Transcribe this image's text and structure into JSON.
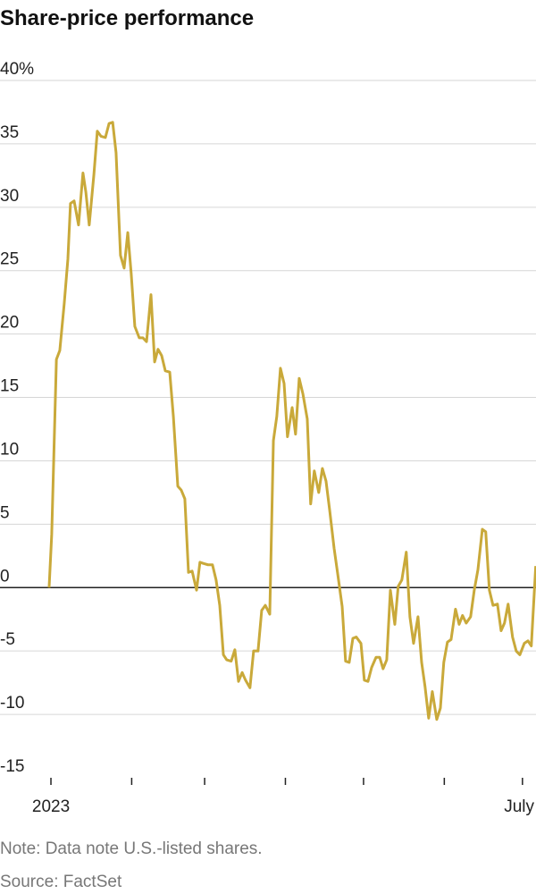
{
  "chart_data": {
    "type": "line",
    "title": "Share-price performance",
    "note": "Note: Data note U.S.-listed shares.",
    "source": "Source: FactSet",
    "color": "#c9a93a",
    "x": [
      -0.7,
      0.3,
      2.1,
      3.4,
      5.1,
      6.5,
      7.5,
      8.9,
      10.6,
      12.3,
      13.4,
      14.7,
      16.5,
      17.8,
      19.2,
      20.9,
      22.3,
      23.7,
      25.0,
      26.7,
      28.1,
      29.5,
      30.8,
      32.2,
      33.9,
      35.3,
      36.7,
      38.4,
      39.8,
      41.1,
      42.5,
      43.9,
      45.6,
      47.0,
      48.7,
      50.0,
      51.4,
      52.8,
      54.2,
      55.9,
      57.2,
      58.6,
      60.3,
      62.0,
      63.4,
      64.8,
      66.2,
      67.5,
      69.2,
      70.6,
      72.0,
      73.4,
      74.7,
      76.4,
      77.8,
      79.5,
      80.9,
      82.3,
      84.0,
      85.4,
      86.7,
      88.1,
      89.5,
      90.8,
      92.6,
      93.9,
      95.3,
      96.7,
      98.4,
      99.7,
      101.1,
      102.8,
      104.2,
      105.6,
      107.0,
      108.7,
      110.0,
      111.8,
      113.1,
      114.5,
      115.9,
      117.2,
      119.0,
      120.3,
      121.7,
      123.1,
      124.8,
      126.2,
      127.5,
      128.9,
      130.3,
      132.0,
      133.3,
      134.7,
      136.4,
      137.8,
      139.2,
      140.9,
      142.3,
      143.6,
      145.0,
      146.4,
      148.1,
      149.5,
      150.8,
      152.2,
      153.6,
      155.3,
      156.7,
      158.0,
      159.4,
      161.1,
      162.5,
      163.9,
      165.6,
      166.9,
      168.3,
      169.7,
      171.4,
      172.8,
      174.1,
      175.5,
      177.2,
      178.6,
      180.0,
      181.7,
      183.1,
      184.4,
      186.1
    ],
    "values": [
      0,
      4.2,
      18,
      18.7,
      22.4,
      25.9,
      30.3,
      30.5,
      28.6,
      32.7,
      31.2,
      28.6,
      32.6,
      36,
      35.6,
      35.5,
      36.6,
      36.7,
      34.3,
      26.2,
      25.2,
      28,
      24.8,
      20.6,
      19.7,
      19.7,
      19.4,
      23.1,
      17.8,
      18.8,
      18.3,
      17.1,
      17,
      13.5,
      8,
      7.7,
      7,
      1.2,
      1.3,
      -0.2,
      2,
      1.9,
      1.8,
      1.8,
      0.6,
      -1.4,
      -5.3,
      -5.7,
      -5.8,
      -4.9,
      -7.4,
      -6.7,
      -7.3,
      -7.9,
      -5,
      -5,
      -1.8,
      -1.4,
      -2.1,
      11.6,
      13.5,
      17.3,
      16.1,
      11.9,
      14.2,
      12.1,
      16.5,
      15.3,
      13.3,
      6.6,
      9.2,
      7.5,
      9.4,
      8.4,
      6.1,
      3.1,
      1.2,
      -1.5,
      -5.8,
      -5.9,
      -4,
      -3.9,
      -4.4,
      -7.3,
      -7.4,
      -6.3,
      -5.5,
      -5.5,
      -6.4,
      -5.7,
      -0.2,
      -2.9,
      0.1,
      0.6,
      2.8,
      -2.3,
      -4.4,
      -2.3,
      -5.9,
      -7.8,
      -10.3,
      -8.2,
      -10.4,
      -9.5,
      -5.9,
      -4.3,
      -4.1,
      -1.7,
      -2.9,
      -2.2,
      -2.8,
      -2.3,
      -0.2,
      1.4,
      4.6,
      4.4,
      -0.2,
      -1.4,
      -1.3,
      -3.4,
      -2.8,
      -1.3,
      -3.9,
      -5,
      -5.3,
      -4.4,
      -4.2,
      -4.6,
      1.7
    ],
    "xlim": [
      -1,
      186.2
    ],
    "xticks": [
      {
        "value": 0,
        "label": "2023"
      },
      31,
      59,
      90,
      120,
      151,
      {
        "value": 181,
        "label": "July"
      }
    ],
    "ylim": [
      -15,
      40
    ],
    "yticks": [
      {
        "value": 40,
        "label": "40%"
      },
      35,
      30,
      25,
      20,
      15,
      10,
      5,
      0,
      -5,
      -10,
      -15
    ],
    "grid": true
  }
}
